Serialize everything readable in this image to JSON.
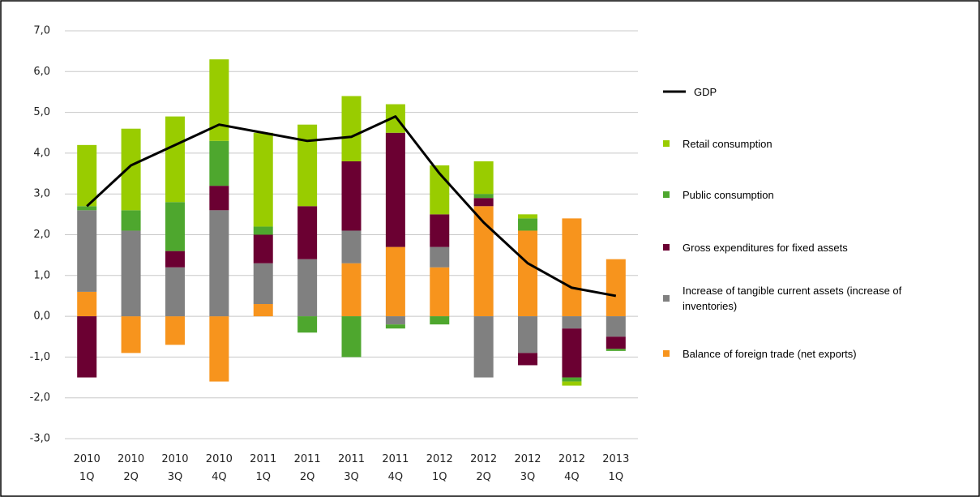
{
  "chart_data": {
    "type": "bar",
    "categories": [
      [
        "2010",
        "1Q"
      ],
      [
        "2010",
        "2Q"
      ],
      [
        "2010",
        "3Q"
      ],
      [
        "2010",
        "4Q"
      ],
      [
        "2011",
        "1Q"
      ],
      [
        "2011",
        "2Q"
      ],
      [
        "2011",
        "3Q"
      ],
      [
        "2011",
        "4Q"
      ],
      [
        "2012",
        "1Q"
      ],
      [
        "2012",
        "2Q"
      ],
      [
        "2012",
        "3Q"
      ],
      [
        "2012",
        "4Q"
      ],
      [
        "2013",
        "1Q"
      ]
    ],
    "series": [
      {
        "name": "GDP",
        "type": "line",
        "color": "#000000",
        "values": [
          2.7,
          3.7,
          4.2,
          4.7,
          4.5,
          4.3,
          4.4,
          4.9,
          3.5,
          2.3,
          1.3,
          0.7,
          0.5
        ]
      },
      {
        "name": "Retail consumption",
        "color": "#99cc00",
        "values": [
          1.5,
          2.0,
          2.1,
          2.0,
          2.3,
          2.0,
          1.6,
          0.7,
          1.2,
          0.8,
          0.1,
          -0.1,
          0
        ]
      },
      {
        "name": "Public consumption",
        "color": "#4ea72e",
        "values": [
          0.1,
          0.5,
          1.2,
          1.1,
          0.2,
          -0.4,
          -1.0,
          -0.1,
          -0.2,
          0.1,
          0.3,
          -0.1,
          -0.05
        ]
      },
      {
        "name": "Gross expenditures for fixed assets",
        "color": "#6b0032",
        "values": [
          -1.5,
          0,
          0.4,
          0.6,
          0.7,
          1.3,
          1.7,
          2.8,
          0.8,
          0.2,
          -0.3,
          -1.2,
          -0.3
        ]
      },
      {
        "name": "Increase of tangible current assets (increase of inventories)",
        "color": "#808080",
        "values": [
          2.0,
          2.1,
          1.2,
          2.6,
          1.0,
          1.4,
          0.8,
          -0.2,
          0.5,
          -1.5,
          -0.9,
          -0.3,
          -0.5
        ]
      },
      {
        "name": "Balance of foreign trade (net exports)",
        "color": "#f7941d",
        "values": [
          0.6,
          -0.9,
          -0.7,
          -1.6,
          0.3,
          0,
          1.3,
          1.7,
          1.2,
          2.7,
          2.1,
          2.4,
          1.4
        ]
      }
    ],
    "ylim": [
      -3,
      7
    ],
    "yticks": [
      {
        "value": -3,
        "label": "-3,0"
      },
      {
        "value": -2,
        "label": "-2,0"
      },
      {
        "value": -1,
        "label": "-1,0"
      },
      {
        "value": 0,
        "label": "0,0"
      },
      {
        "value": 1,
        "label": "1,0"
      },
      {
        "value": 2,
        "label": "2,0"
      },
      {
        "value": 3,
        "label": "3,0"
      },
      {
        "value": 4,
        "label": "4,0"
      },
      {
        "value": 5,
        "label": "5,0"
      },
      {
        "value": 6,
        "label": "6,0"
      },
      {
        "value": 7,
        "label": "7,0"
      }
    ],
    "grid": true
  }
}
